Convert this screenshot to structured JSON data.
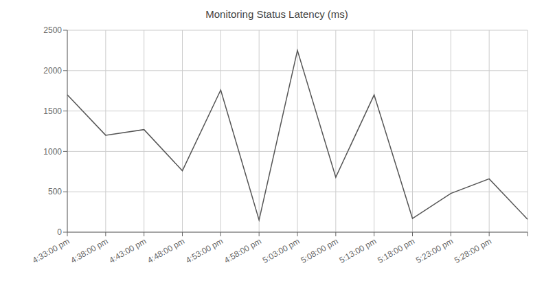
{
  "chart_data": {
    "type": "line",
    "title": "Monitoring Status Latency (ms)",
    "categories": [
      "4:33:00 pm",
      "4:38:00 pm",
      "4:43:00 pm",
      "4:48:00 pm",
      "4:53:00 pm",
      "4:58:00 pm",
      "5:03:00 pm",
      "5:08:00 pm",
      "5:13:00 pm",
      "5:18:00 pm",
      "5:23:00 pm",
      "5:28:00 pm",
      null
    ],
    "values": [
      1700,
      1200,
      1270,
      760,
      1760,
      150,
      2250,
      680,
      1700,
      170,
      480,
      660,
      160
    ],
    "color": "#555555",
    "ylim": [
      0,
      2500
    ],
    "yticks": [
      0,
      500,
      1000,
      1500,
      2000,
      2500
    ],
    "grid": true
  }
}
